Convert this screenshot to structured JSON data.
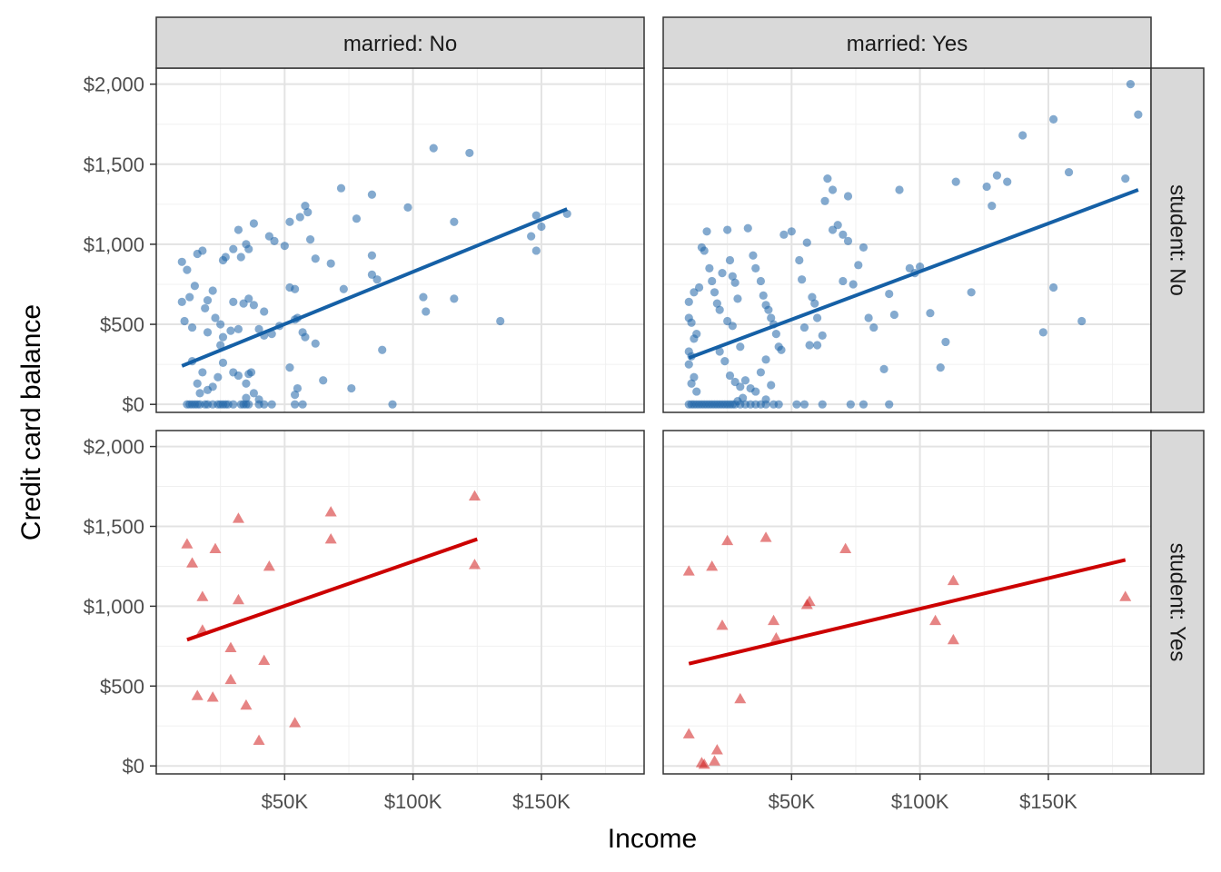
{
  "chart_data": {
    "type": "scatter",
    "facets": "grid",
    "xlabel": "Income",
    "ylabel": "Credit card balance",
    "xlim": [
      0,
      190
    ],
    "ylim": [
      -50,
      2100
    ],
    "x_ticks": [
      50,
      100,
      150
    ],
    "x_tick_labels": [
      "$50K",
      "$100K",
      "$150K"
    ],
    "y_ticks": [
      0,
      500,
      1000,
      1500,
      2000
    ],
    "y_tick_labels": [
      "$0",
      "$500",
      "$1,000",
      "$1,500",
      "$2,000"
    ],
    "grid": true,
    "col_strips": [
      "married: No",
      "married: Yes"
    ],
    "row_strips": [
      "student: No",
      "student: Yes"
    ],
    "colors": {
      "student_no": "#1f64a8",
      "student_yes": "#d11f1f"
    },
    "panels": [
      {
        "col": 0,
        "row": 0,
        "marker": "circle",
        "color": "#1f64a8",
        "points": [
          [
            10,
            890
          ],
          [
            12,
            840
          ],
          [
            10,
            640
          ],
          [
            14,
            480
          ],
          [
            11,
            520
          ],
          [
            13,
            670
          ],
          [
            16,
            940
          ],
          [
            18,
            960
          ],
          [
            20,
            650
          ],
          [
            22,
            710
          ],
          [
            19,
            600
          ],
          [
            15,
            740
          ],
          [
            23,
            540
          ],
          [
            25,
            500
          ],
          [
            20,
            450
          ],
          [
            14,
            270
          ],
          [
            18,
            200
          ],
          [
            16,
            130
          ],
          [
            20,
            90
          ],
          [
            24,
            170
          ],
          [
            22,
            110
          ],
          [
            17,
            70
          ],
          [
            12,
            0
          ],
          [
            13,
            0
          ],
          [
            14,
            0
          ],
          [
            15,
            0
          ],
          [
            16,
            0
          ],
          [
            17,
            0
          ],
          [
            19,
            0
          ],
          [
            20,
            0
          ],
          [
            22,
            0
          ],
          [
            24,
            0
          ],
          [
            26,
            0
          ],
          [
            28,
            0
          ],
          [
            30,
            0
          ],
          [
            25,
            0
          ],
          [
            27,
            0
          ],
          [
            33,
            0
          ],
          [
            34,
            0
          ],
          [
            35,
            0
          ],
          [
            36,
            0
          ],
          [
            40,
            0
          ],
          [
            42,
            0
          ],
          [
            45,
            0
          ],
          [
            26,
            900
          ],
          [
            27,
            920
          ],
          [
            30,
            970
          ],
          [
            33,
            920
          ],
          [
            32,
            1090
          ],
          [
            35,
            1000
          ],
          [
            36,
            970
          ],
          [
            38,
            1130
          ],
          [
            30,
            640
          ],
          [
            34,
            630
          ],
          [
            38,
            620
          ],
          [
            36,
            660
          ],
          [
            42,
            580
          ],
          [
            42,
            430
          ],
          [
            45,
            440
          ],
          [
            40,
            470
          ],
          [
            32,
            470
          ],
          [
            29,
            460
          ],
          [
            26,
            420
          ],
          [
            25,
            370
          ],
          [
            26,
            260
          ],
          [
            30,
            200
          ],
          [
            32,
            180
          ],
          [
            35,
            130
          ],
          [
            36,
            190
          ],
          [
            37,
            200
          ],
          [
            38,
            70
          ],
          [
            35,
            40
          ],
          [
            40,
            30
          ],
          [
            44,
            1050
          ],
          [
            46,
            1020
          ],
          [
            50,
            990
          ],
          [
            52,
            1140
          ],
          [
            56,
            1170
          ],
          [
            58,
            1240
          ],
          [
            59,
            1200
          ],
          [
            60,
            1030
          ],
          [
            62,
            910
          ],
          [
            54,
            720
          ],
          [
            52,
            730
          ],
          [
            55,
            540
          ],
          [
            54,
            530
          ],
          [
            57,
            450
          ],
          [
            58,
            420
          ],
          [
            62,
            380
          ],
          [
            48,
            490
          ],
          [
            52,
            230
          ],
          [
            55,
            100
          ],
          [
            54,
            60
          ],
          [
            57,
            0
          ],
          [
            54,
            0
          ],
          [
            65,
            150
          ],
          [
            68,
            880
          ],
          [
            72,
            1350
          ],
          [
            73,
            720
          ],
          [
            78,
            1160
          ],
          [
            84,
            1310
          ],
          [
            84,
            930
          ],
          [
            84,
            810
          ],
          [
            86,
            780
          ],
          [
            88,
            340
          ],
          [
            92,
            0
          ],
          [
            98,
            1230
          ],
          [
            76,
            100
          ],
          [
            104,
            670
          ],
          [
            105,
            580
          ],
          [
            108,
            1600
          ],
          [
            116,
            660
          ],
          [
            116,
            1140
          ],
          [
            122,
            1570
          ],
          [
            134,
            520
          ],
          [
            146,
            1050
          ],
          [
            148,
            960
          ],
          [
            150,
            1110
          ],
          [
            148,
            1180
          ],
          [
            160,
            1190
          ]
        ],
        "trend": [
          [
            10,
            240
          ],
          [
            160,
            1220
          ]
        ]
      },
      {
        "col": 1,
        "row": 0,
        "marker": "circle",
        "color": "#1f64a8",
        "points": [
          [
            10,
            640
          ],
          [
            12,
            700
          ],
          [
            14,
            730
          ],
          [
            10,
            540
          ],
          [
            11,
            510
          ],
          [
            13,
            440
          ],
          [
            12,
            410
          ],
          [
            10,
            330
          ],
          [
            11,
            300
          ],
          [
            10,
            250
          ],
          [
            12,
            170
          ],
          [
            11,
            130
          ],
          [
            13,
            80
          ],
          [
            10,
            0
          ],
          [
            11,
            0
          ],
          [
            12,
            0
          ],
          [
            13,
            0
          ],
          [
            14,
            0
          ],
          [
            15,
            0
          ],
          [
            16,
            0
          ],
          [
            17,
            0
          ],
          [
            18,
            0
          ],
          [
            19,
            0
          ],
          [
            20,
            0
          ],
          [
            21,
            0
          ],
          [
            22,
            0
          ],
          [
            23,
            0
          ],
          [
            24,
            0
          ],
          [
            25,
            0
          ],
          [
            26,
            0
          ],
          [
            27,
            0
          ],
          [
            28,
            0
          ],
          [
            30,
            0
          ],
          [
            32,
            0
          ],
          [
            34,
            0
          ],
          [
            36,
            0
          ],
          [
            38,
            0
          ],
          [
            40,
            0
          ],
          [
            43,
            0
          ],
          [
            45,
            0
          ],
          [
            52,
            0
          ],
          [
            55,
            0
          ],
          [
            62,
            0
          ],
          [
            73,
            0
          ],
          [
            78,
            0
          ],
          [
            88,
            0
          ],
          [
            15,
            980
          ],
          [
            17,
            1080
          ],
          [
            16,
            960
          ],
          [
            18,
            850
          ],
          [
            19,
            770
          ],
          [
            20,
            700
          ],
          [
            21,
            630
          ],
          [
            22,
            590
          ],
          [
            23,
            820
          ],
          [
            25,
            1090
          ],
          [
            26,
            900
          ],
          [
            27,
            800
          ],
          [
            28,
            760
          ],
          [
            29,
            660
          ],
          [
            25,
            520
          ],
          [
            27,
            490
          ],
          [
            30,
            360
          ],
          [
            22,
            330
          ],
          [
            24,
            270
          ],
          [
            26,
            180
          ],
          [
            28,
            140
          ],
          [
            30,
            110
          ],
          [
            32,
            150
          ],
          [
            34,
            100
          ],
          [
            36,
            80
          ],
          [
            31,
            40
          ],
          [
            29,
            20
          ],
          [
            33,
            1100
          ],
          [
            35,
            930
          ],
          [
            36,
            850
          ],
          [
            38,
            770
          ],
          [
            39,
            680
          ],
          [
            40,
            620
          ],
          [
            41,
            590
          ],
          [
            42,
            540
          ],
          [
            43,
            500
          ],
          [
            44,
            440
          ],
          [
            45,
            360
          ],
          [
            46,
            340
          ],
          [
            40,
            280
          ],
          [
            38,
            200
          ],
          [
            42,
            120
          ],
          [
            40,
            30
          ],
          [
            47,
            1060
          ],
          [
            50,
            1080
          ],
          [
            53,
            900
          ],
          [
            56,
            1010
          ],
          [
            54,
            780
          ],
          [
            58,
            670
          ],
          [
            59,
            630
          ],
          [
            60,
            540
          ],
          [
            62,
            430
          ],
          [
            55,
            480
          ],
          [
            57,
            370
          ],
          [
            60,
            370
          ],
          [
            63,
            1270
          ],
          [
            66,
            1090
          ],
          [
            68,
            1120
          ],
          [
            70,
            1060
          ],
          [
            72,
            1020
          ],
          [
            66,
            1340
          ],
          [
            64,
            1410
          ],
          [
            72,
            1300
          ],
          [
            76,
            870
          ],
          [
            78,
            980
          ],
          [
            70,
            770
          ],
          [
            74,
            750
          ],
          [
            80,
            540
          ],
          [
            82,
            480
          ],
          [
            86,
            220
          ],
          [
            88,
            690
          ],
          [
            90,
            560
          ],
          [
            92,
            1340
          ],
          [
            96,
            850
          ],
          [
            98,
            820
          ],
          [
            100,
            860
          ],
          [
            104,
            570
          ],
          [
            108,
            230
          ],
          [
            110,
            390
          ],
          [
            114,
            1390
          ],
          [
            120,
            700
          ],
          [
            126,
            1360
          ],
          [
            128,
            1240
          ],
          [
            130,
            1430
          ],
          [
            134,
            1390
          ],
          [
            140,
            1680
          ],
          [
            148,
            450
          ],
          [
            152,
            730
          ],
          [
            152,
            1780
          ],
          [
            158,
            1450
          ],
          [
            163,
            520
          ],
          [
            180,
            1410
          ],
          [
            182,
            2000
          ],
          [
            185,
            1810
          ]
        ],
        "trend": [
          [
            10,
            290
          ],
          [
            185,
            1340
          ]
        ]
      },
      {
        "col": 0,
        "row": 1,
        "marker": "triangle",
        "color": "#d11f1f",
        "points": [
          [
            12,
            1390
          ],
          [
            14,
            1270
          ],
          [
            18,
            1060
          ],
          [
            18,
            850
          ],
          [
            23,
            1360
          ],
          [
            16,
            440
          ],
          [
            22,
            430
          ],
          [
            29,
            740
          ],
          [
            29,
            540
          ],
          [
            32,
            1550
          ],
          [
            32,
            1040
          ],
          [
            35,
            380
          ],
          [
            40,
            160
          ],
          [
            42,
            660
          ],
          [
            44,
            1250
          ],
          [
            54,
            270
          ],
          [
            68,
            1590
          ],
          [
            68,
            1420
          ],
          [
            124,
            1690
          ],
          [
            124,
            1260
          ]
        ],
        "trend": [
          [
            12,
            790
          ],
          [
            125,
            1420
          ]
        ]
      },
      {
        "col": 1,
        "row": 1,
        "marker": "triangle",
        "color": "#d11f1f",
        "points": [
          [
            10,
            1220
          ],
          [
            10,
            200
          ],
          [
            15,
            20
          ],
          [
            16,
            10
          ],
          [
            19,
            1250
          ],
          [
            20,
            30
          ],
          [
            21,
            100
          ],
          [
            23,
            880
          ],
          [
            25,
            1410
          ],
          [
            30,
            420
          ],
          [
            40,
            1430
          ],
          [
            43,
            910
          ],
          [
            44,
            800
          ],
          [
            56,
            1010
          ],
          [
            57,
            1030
          ],
          [
            71,
            1360
          ],
          [
            106,
            910
          ],
          [
            113,
            1160
          ],
          [
            113,
            790
          ],
          [
            180,
            1060
          ]
        ],
        "trend": [
          [
            10,
            640
          ],
          [
            180,
            1290
          ]
        ]
      }
    ]
  }
}
